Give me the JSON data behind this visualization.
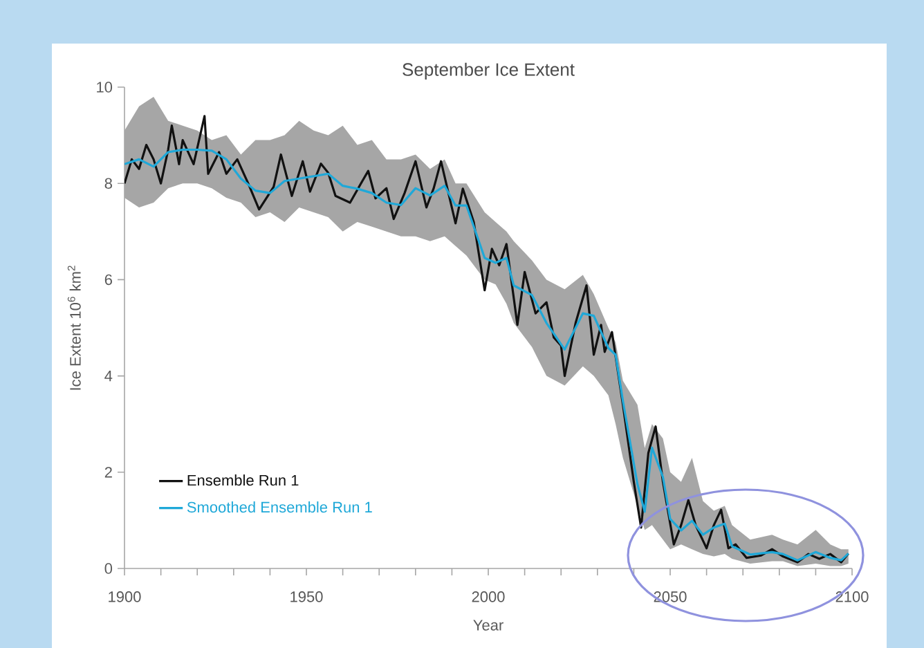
{
  "chart_data": {
    "type": "line",
    "title": "September Ice Extent",
    "xlabel": "Year",
    "ylabel": "Ice Extent  10$^{6}$ km$^{2}$",
    "xlim": [
      1900,
      2100
    ],
    "ylim": [
      0,
      10
    ],
    "xticks": [
      1900,
      {
        "value": 1910,
        "label": null
      },
      {
        "value": 1920,
        "label": null
      },
      {
        "value": 1930,
        "label": null
      },
      {
        "value": 1940,
        "label": null
      },
      1950,
      {
        "value": 1960,
        "label": null
      },
      {
        "value": 1970,
        "label": null
      },
      {
        "value": 1980,
        "label": null
      },
      {
        "value": 1990,
        "label": null
      },
      2000,
      {
        "value": 2010,
        "label": null
      },
      {
        "value": 2020,
        "label": null
      },
      {
        "value": 2030,
        "label": null
      },
      {
        "value": 2040,
        "label": null
      },
      2050,
      {
        "value": 2060,
        "label": null
      },
      {
        "value": 2070,
        "label": null
      },
      {
        "value": 2080,
        "label": null
      },
      {
        "value": 2090,
        "label": null
      },
      2100
    ],
    "yticks": [
      0,
      2,
      4,
      6,
      8,
      10
    ],
    "grid": false,
    "legend": "bottom left",
    "marker": "none",
    "line_style": "solid",
    "series": [
      {
        "name": "Ensemble Run 1",
        "color": "#111111",
        "x": [
          1900,
          1902,
          1904,
          1906,
          1908,
          1910,
          1912,
          1913,
          1915,
          1916,
          1919,
          1922,
          1923,
          1926,
          1928,
          1931,
          1934,
          1937,
          1941,
          1943,
          1946,
          1949,
          1951,
          1954,
          1956,
          1958,
          1962,
          1965,
          1967,
          1969,
          1972,
          1974,
          1977,
          1980,
          1983,
          1985,
          1987,
          1991,
          1993,
          1996,
          1999,
          2001,
          2003,
          2005,
          2008,
          2010,
          2013,
          2016,
          2018,
          2020,
          2021,
          2024,
          2027,
          2029,
          2031,
          2032,
          2034,
          2037,
          2040,
          2042,
          2044,
          2046,
          2048,
          2051,
          2053,
          2055,
          2057,
          2060,
          2062,
          2064,
          2066,
          2068,
          2071,
          2075,
          2078,
          2081,
          2085,
          2088,
          2091,
          2094,
          2097,
          2099
        ],
        "values": [
          8.0,
          8.5,
          8.3,
          8.8,
          8.5,
          8.0,
          8.7,
          9.2,
          8.4,
          8.9,
          8.4,
          9.4,
          8.2,
          8.65,
          8.2,
          8.5,
          8.0,
          7.46,
          7.93,
          8.6,
          7.74,
          8.46,
          7.83,
          8.41,
          8.22,
          7.74,
          7.6,
          8.0,
          8.26,
          7.69,
          7.9,
          7.26,
          7.8,
          8.46,
          7.5,
          7.9,
          8.46,
          7.17,
          7.89,
          7.2,
          5.78,
          6.64,
          6.3,
          6.74,
          5.06,
          6.16,
          5.3,
          5.53,
          4.8,
          4.63,
          4.0,
          5.1,
          5.88,
          4.44,
          5.06,
          4.5,
          4.91,
          3.4,
          1.8,
          0.85,
          2.4,
          2.95,
          1.8,
          0.5,
          0.9,
          1.42,
          0.9,
          0.42,
          0.9,
          1.22,
          0.42,
          0.5,
          0.22,
          0.27,
          0.4,
          0.25,
          0.13,
          0.3,
          0.2,
          0.3,
          0.13,
          0.31
        ]
      },
      {
        "name": "Smoothed Ensemble Run 1",
        "color": "#1fa8d8",
        "x": [
          1900,
          1904,
          1908,
          1912,
          1916,
          1920,
          1924,
          1928,
          1932,
          1936,
          1940,
          1944,
          1948,
          1952,
          1956,
          1960,
          1964,
          1968,
          1972,
          1976,
          1980,
          1984,
          1988,
          1991,
          1994,
          1999,
          2002,
          2005,
          2007,
          2012,
          2016,
          2021,
          2026,
          2029,
          2033,
          2035,
          2037,
          2041,
          2043,
          2045,
          2048,
          2050,
          2053,
          2056,
          2059,
          2062,
          2065,
          2067,
          2072,
          2078,
          2081,
          2085,
          2090,
          2094,
          2097,
          2099
        ],
        "values": [
          8.4,
          8.5,
          8.35,
          8.65,
          8.7,
          8.7,
          8.68,
          8.5,
          8.1,
          7.85,
          7.8,
          8.05,
          8.1,
          8.15,
          8.2,
          7.95,
          7.89,
          7.8,
          7.6,
          7.55,
          7.9,
          7.75,
          7.95,
          7.54,
          7.54,
          6.45,
          6.35,
          6.45,
          5.88,
          5.68,
          5.1,
          4.55,
          5.3,
          5.25,
          4.58,
          4.44,
          3.48,
          1.75,
          1.18,
          2.51,
          1.9,
          1.03,
          0.79,
          0.99,
          0.7,
          0.85,
          0.93,
          0.46,
          0.29,
          0.34,
          0.3,
          0.17,
          0.34,
          0.22,
          0.17,
          0.31
        ],
        "lower": [
          7.7,
          7.5,
          7.6,
          7.9,
          8.0,
          8.0,
          7.9,
          7.7,
          7.6,
          7.3,
          7.4,
          7.2,
          7.5,
          7.4,
          7.3,
          7.0,
          7.2,
          7.1,
          7.0,
          6.9,
          6.9,
          6.8,
          6.9,
          6.7,
          6.5,
          6.0,
          5.9,
          5.5,
          5.1,
          4.6,
          4.0,
          3.8,
          4.2,
          4.0,
          3.6,
          3.0,
          2.3,
          1.3,
          0.8,
          0.9,
          0.6,
          0.4,
          0.5,
          0.4,
          0.3,
          0.25,
          0.3,
          0.2,
          0.1,
          0.15,
          0.15,
          0.05,
          0.1,
          0.05,
          0.05,
          0.1
        ],
        "upper": [
          9.1,
          9.6,
          9.8,
          9.3,
          9.2,
          9.1,
          8.9,
          9.0,
          8.6,
          8.9,
          8.9,
          9.0,
          9.3,
          9.1,
          9.0,
          9.2,
          8.8,
          8.9,
          8.5,
          8.5,
          8.6,
          8.3,
          8.5,
          8.0,
          8.0,
          7.4,
          7.2,
          7.0,
          6.8,
          6.4,
          6.0,
          5.8,
          6.1,
          5.7,
          5.0,
          4.7,
          3.9,
          3.4,
          2.5,
          3.0,
          2.7,
          2.0,
          1.8,
          2.3,
          1.4,
          1.2,
          1.3,
          0.9,
          0.6,
          0.7,
          0.6,
          0.5,
          0.8,
          0.5,
          0.4,
          0.4
        ]
      }
    ]
  }
}
